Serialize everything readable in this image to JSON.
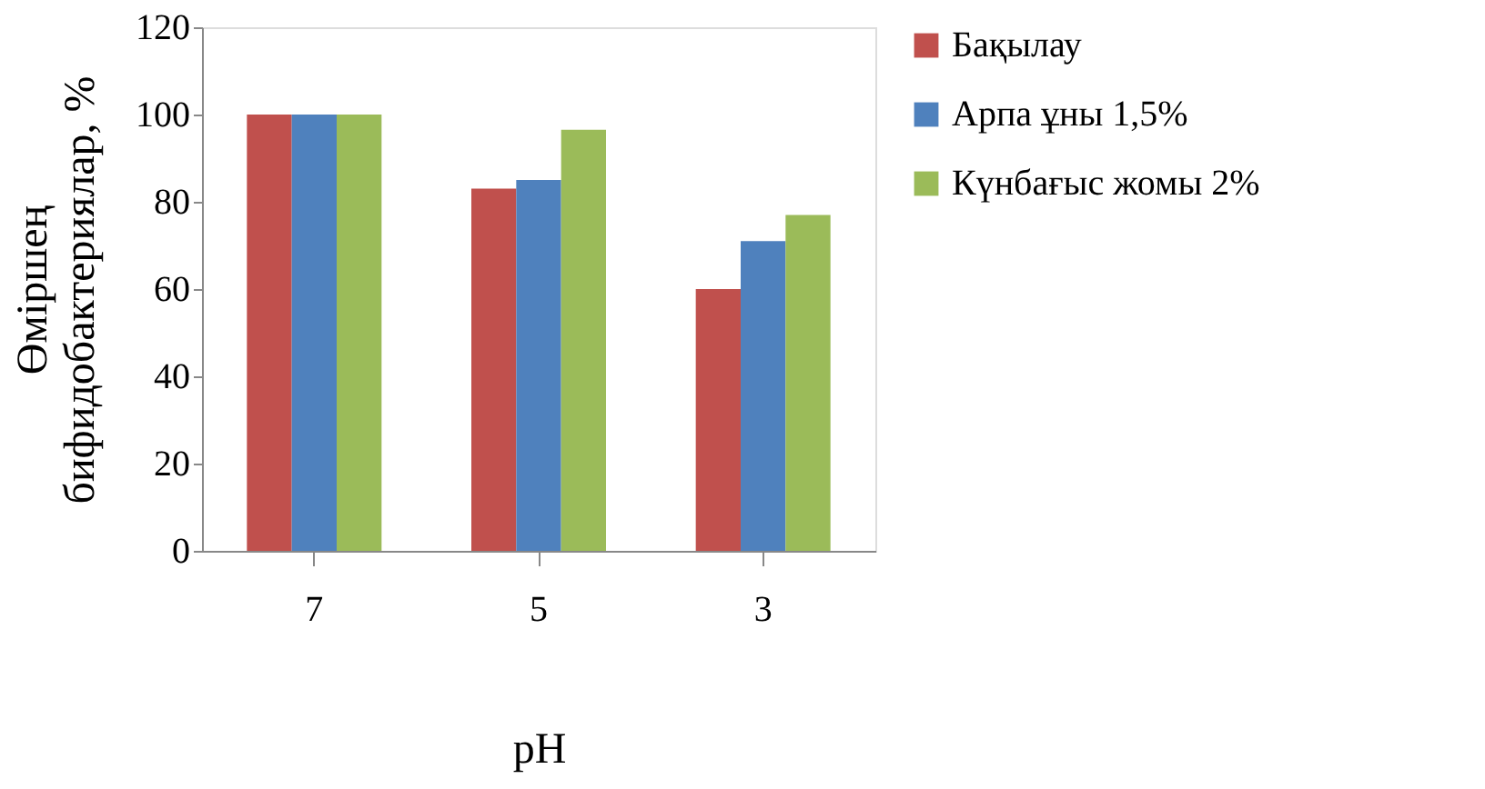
{
  "chart_data": {
    "type": "bar",
    "xlabel": "pH",
    "ylabel": "Өміршең\nбифидобактериялар, %",
    "categories": [
      "7",
      "5",
      "3"
    ],
    "series": [
      {
        "name": "Бақылау",
        "color": "#c0504d",
        "values": [
          100,
          83,
          60
        ]
      },
      {
        "name": "Арпа ұны 1,5%",
        "color": "#4f81bd",
        "values": [
          100,
          85,
          71
        ]
      },
      {
        "name": "Күнбағыс жомы 2%",
        "color": "#9bbb59",
        "values": [
          100,
          96.5,
          77
        ]
      }
    ],
    "ylim": [
      0,
      120
    ],
    "yticks": [
      0,
      20,
      40,
      60,
      80,
      100,
      120
    ],
    "grid": false,
    "legend": "right"
  }
}
